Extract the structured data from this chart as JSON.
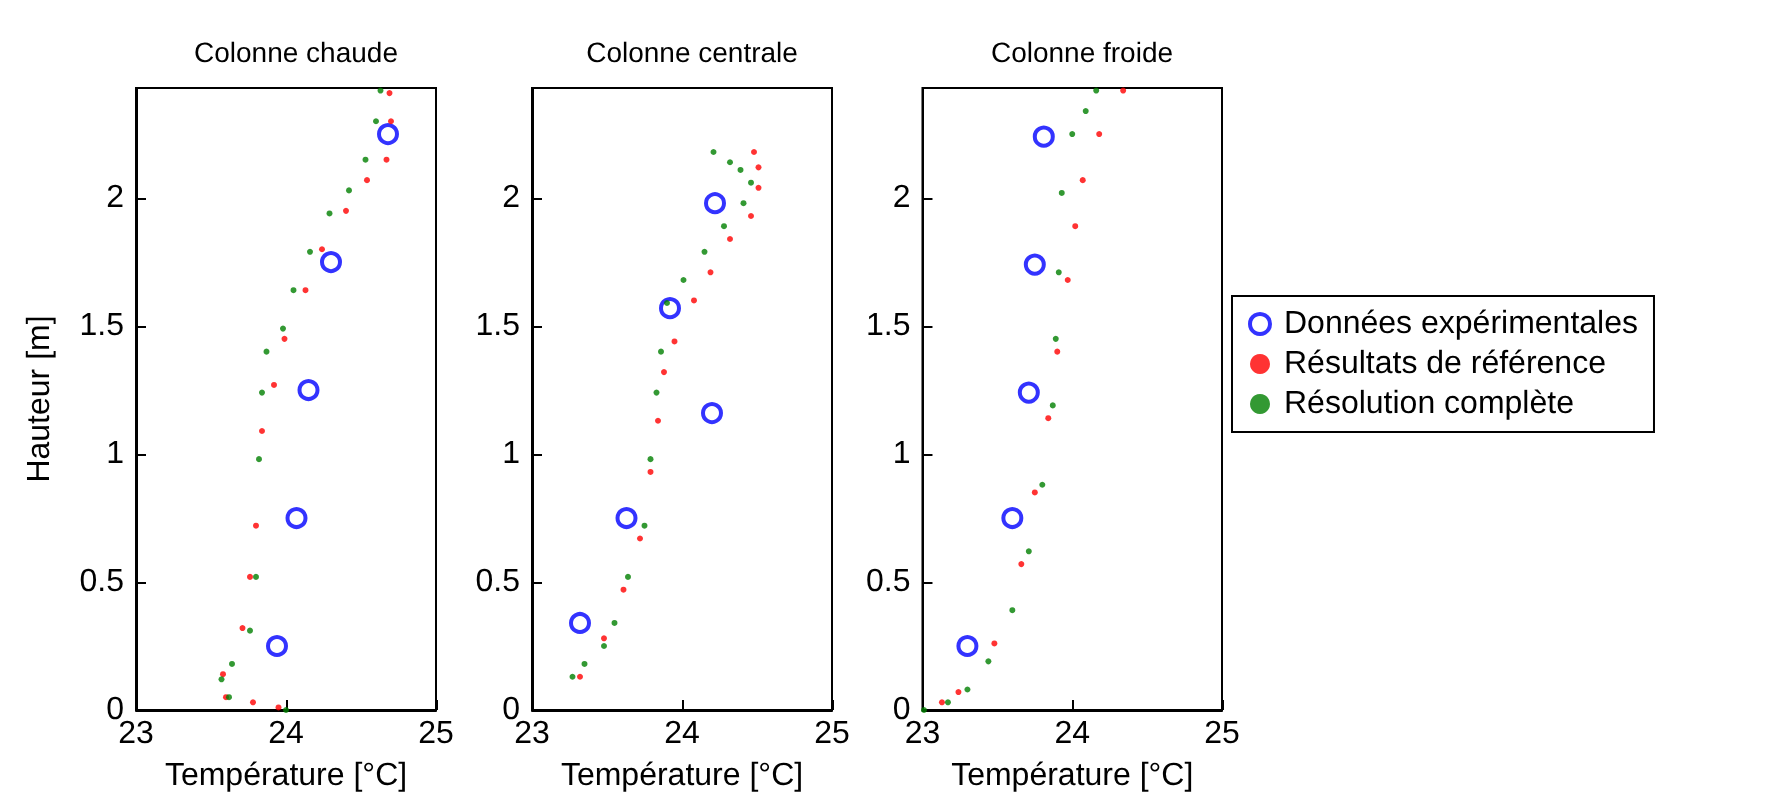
{
  "chart_data": [
    {
      "type": "scatter",
      "title": "Colonne chaude",
      "xlabel": "Température [°C]",
      "ylabel": "Hauteur [m]",
      "xlim": [
        23,
        25
      ],
      "xticks": [
        23,
        24,
        25
      ],
      "ylim": [
        0,
        2.43
      ],
      "yticks": [
        0,
        0.5,
        1,
        1.5,
        2
      ],
      "grid": false,
      "legend": false,
      "marker": "circle",
      "series": [
        {
          "color": "#0000ff",
          "x": [
            24.68,
            24.3,
            24.15,
            24.07,
            23.94
          ],
          "values": [
            2.25,
            1.75,
            1.25,
            0.75,
            0.25
          ]
        },
        {
          "color": "#ff0000",
          "x": [
            23.95,
            23.78,
            23.6,
            23.58,
            23.71,
            23.76,
            23.8,
            23.84,
            23.92,
            23.99,
            24.13,
            24.24,
            24.4,
            24.54,
            24.67,
            24.7,
            24.69
          ],
          "values": [
            0.01,
            0.03,
            0.05,
            0.14,
            0.32,
            0.52,
            0.72,
            1.09,
            1.27,
            1.45,
            1.64,
            1.8,
            1.95,
            2.07,
            2.15,
            2.3,
            2.41
          ]
        },
        {
          "color": "#008000",
          "x": [
            24.0,
            23.62,
            23.57,
            23.64,
            23.76,
            23.8,
            23.82,
            23.84,
            23.87,
            23.98,
            24.05,
            24.16,
            24.29,
            24.42,
            24.53,
            24.6,
            24.63
          ],
          "values": [
            0.0,
            0.05,
            0.12,
            0.18,
            0.31,
            0.52,
            0.98,
            1.24,
            1.4,
            1.49,
            1.64,
            1.79,
            1.94,
            2.03,
            2.15,
            2.3,
            2.42
          ]
        }
      ]
    },
    {
      "type": "scatter",
      "title": "Colonne centrale",
      "xlabel": "Température [°C]",
      "xlim": [
        23,
        25
      ],
      "xticks": [
        23,
        24,
        25
      ],
      "ylim": [
        0,
        2.43
      ],
      "yticks": [
        0,
        0.5,
        1,
        1.5,
        2
      ],
      "grid": false,
      "legend": false,
      "marker": "circle",
      "series": [
        {
          "color": "#0000ff",
          "x": [
            24.22,
            23.92,
            24.2,
            23.63,
            23.32
          ],
          "values": [
            1.98,
            1.57,
            1.16,
            0.75,
            0.34
          ]
        },
        {
          "color": "#ff0000",
          "x": [
            23.32,
            23.48,
            23.61,
            23.72,
            23.79,
            23.84,
            23.88,
            23.95,
            24.08,
            24.19,
            24.32,
            24.46,
            24.51,
            24.51,
            24.48
          ],
          "values": [
            0.13,
            0.28,
            0.47,
            0.67,
            0.93,
            1.13,
            1.32,
            1.44,
            1.6,
            1.71,
            1.84,
            1.93,
            2.04,
            2.12,
            2.18
          ]
        },
        {
          "color": "#008000",
          "x": [
            23.27,
            23.35,
            23.48,
            23.55,
            23.64,
            23.75,
            23.79,
            23.83,
            23.86,
            23.9,
            24.01,
            24.15,
            24.28,
            24.41,
            24.46,
            24.39,
            24.32,
            24.21
          ],
          "values": [
            0.13,
            0.18,
            0.25,
            0.34,
            0.52,
            0.72,
            0.98,
            1.24,
            1.4,
            1.59,
            1.68,
            1.79,
            1.89,
            1.98,
            2.06,
            2.11,
            2.14,
            2.18
          ]
        }
      ]
    },
    {
      "type": "scatter",
      "title": "Colonne froide",
      "xlabel": "Température [°C]",
      "xlim": [
        23,
        25
      ],
      "xticks": [
        23,
        24,
        25
      ],
      "ylim": [
        0,
        2.43
      ],
      "yticks": [
        0,
        0.5,
        1,
        1.5,
        2
      ],
      "grid": false,
      "legend": "right",
      "marker": "circle",
      "series": [
        {
          "name": "Données expérimentales",
          "color": "#0000ff",
          "x": [
            23.81,
            23.75,
            23.71,
            23.6,
            23.3
          ],
          "values": [
            2.24,
            1.74,
            1.24,
            0.75,
            0.25
          ]
        },
        {
          "name": "Résultats de référence",
          "color": "#ff0000",
          "x": [
            23.13,
            23.24,
            23.48,
            23.66,
            23.75,
            23.84,
            23.9,
            23.97,
            24.02,
            24.07,
            24.18,
            24.34
          ],
          "values": [
            0.03,
            0.07,
            0.26,
            0.57,
            0.85,
            1.14,
            1.4,
            1.68,
            1.89,
            2.07,
            2.25,
            2.42
          ]
        },
        {
          "name": "Résolution complète",
          "color": "#008000",
          "x": [
            23.01,
            23.17,
            23.3,
            23.44,
            23.6,
            23.71,
            23.8,
            23.87,
            23.89,
            23.91,
            23.93,
            24.0,
            24.09,
            24.16
          ],
          "values": [
            0.0,
            0.03,
            0.08,
            0.19,
            0.39,
            0.62,
            0.88,
            1.19,
            1.45,
            1.71,
            2.02,
            2.25,
            2.34,
            2.42
          ]
        }
      ]
    }
  ]
}
